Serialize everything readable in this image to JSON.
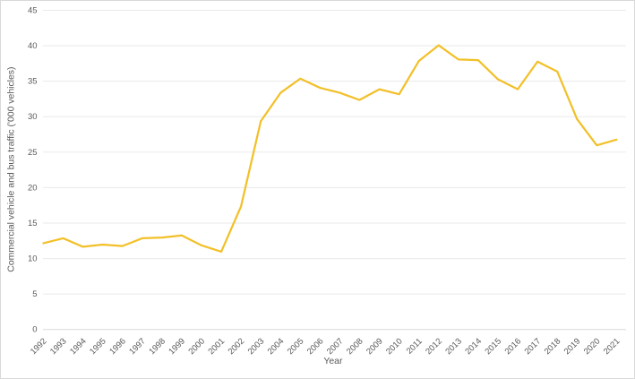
{
  "chart_data": {
    "type": "line",
    "x": [
      "1992",
      "1993",
      "1994",
      "1995",
      "1996",
      "1997",
      "1998",
      "1999",
      "2000",
      "2001",
      "2002",
      "2003",
      "2004",
      "2005",
      "2006",
      "2007",
      "2008",
      "2009",
      "2010",
      "2011",
      "2012",
      "2013",
      "2014",
      "2015",
      "2016",
      "2017",
      "2018",
      "2019",
      "2020",
      "2021"
    ],
    "series": [
      {
        "name": "commercial-vehicle-and-bus-traffic",
        "values": [
          12.1,
          12.8,
          11.6,
          11.9,
          11.7,
          12.8,
          12.9,
          13.2,
          11.8,
          10.9,
          17.3,
          29.3,
          33.3,
          35.3,
          34.0,
          33.3,
          32.3,
          33.8,
          33.1,
          37.8,
          40.0,
          38.0,
          37.9,
          35.2,
          33.8,
          37.7,
          36.3,
          29.6,
          25.9,
          26.7
        ]
      }
    ],
    "title": "",
    "xlabel": "Year",
    "ylabel": "Commercial vehicle and bus traffic ('000 vehicles)",
    "ylim": [
      0,
      45
    ],
    "ytick_step": 5,
    "y_tick_labels": [
      "0",
      "5",
      "10",
      "15",
      "20",
      "25",
      "30",
      "35",
      "40",
      "45"
    ],
    "grid": true,
    "legend": false,
    "colors": {
      "line": "#F2C029",
      "gridline": "#EAEAEA",
      "axis_line": "#D9D9D9",
      "tick_text": "#595959",
      "axis_title_text": "#595959",
      "background": "#FFFFFF",
      "frame_border": "#D9D9D9"
    }
  }
}
